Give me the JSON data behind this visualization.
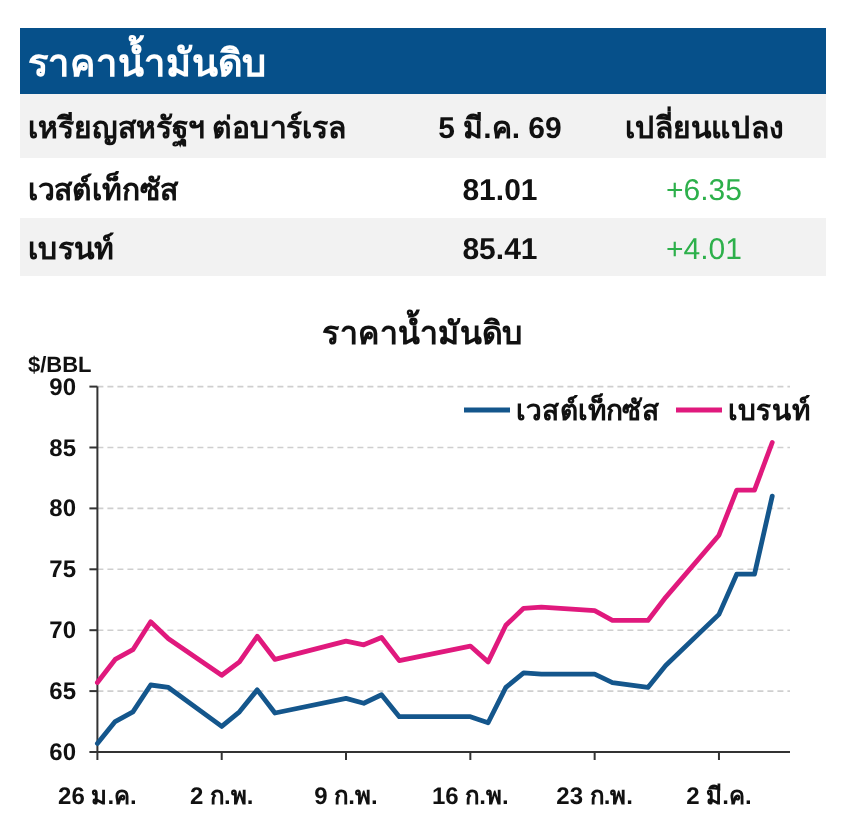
{
  "chart_data": [
    {
      "type": "other",
      "title": "ราคาน้ำมันดิบ",
      "annotations": [
        "เหรียญสหรัฐฯ ต่อบาร์เรล",
        "5 มี.ค. 69",
        "เปลี่ยนแปลง",
        "เวสต์เท็กซัส",
        "81.01",
        "+6.35",
        "เบรนท์",
        "85.41",
        "+4.01"
      ]
    },
    {
      "type": "line",
      "title": "ราคาน้ำมันดิบ",
      "ylabel": "$/BBL",
      "x": [
        "--01-26",
        "--01-27",
        "--01-28",
        "--01-29",
        "--01-30",
        "--02-02",
        "--02-03",
        "--02-04",
        "--02-05",
        "--02-09",
        "--02-10",
        "--02-11",
        "--02-12",
        "--02-16",
        "--02-17",
        "--02-18",
        "--02-19",
        "--02-20",
        "--02-23",
        "--02-24",
        "--02-26",
        "--02-27",
        "--03-02",
        "--03-03",
        "--03-04",
        "--03-05"
      ],
      "series": [
        {
          "name": "เวสต์เท็กซัส",
          "color": "#14568c",
          "values": [
            60.7,
            62.5,
            63.3,
            65.5,
            65.3,
            62.1,
            63.3,
            65.1,
            63.2,
            64.4,
            64.0,
            64.7,
            62.9,
            62.9,
            62.4,
            65.3,
            66.5,
            66.4,
            66.4,
            65.7,
            65.3,
            67.1,
            71.3,
            74.6,
            74.6,
            81.01
          ]
        },
        {
          "name": "เบรนท์",
          "color": "#e0197d",
          "values": [
            65.7,
            67.6,
            68.4,
            70.7,
            69.3,
            66.3,
            67.4,
            69.5,
            67.6,
            69.1,
            68.8,
            69.4,
            67.5,
            68.7,
            67.4,
            70.4,
            71.8,
            71.9,
            71.6,
            70.8,
            70.8,
            72.7,
            77.8,
            81.5,
            81.5,
            85.41
          ]
        }
      ],
      "xlim": [
        "--01-26",
        "--03-06"
      ],
      "xticks": [
        {
          "value": "--01-26",
          "label": "26 ม.ค."
        },
        {
          "value": "--02-02",
          "label": "2 ก.พ."
        },
        {
          "value": "--02-09",
          "label": "9 ก.พ."
        },
        {
          "value": "--02-16",
          "label": "16 ก.พ."
        },
        {
          "value": "--02-23",
          "label": "23 ก.พ."
        },
        {
          "value": "--03-02",
          "label": "2 มี.ค."
        }
      ],
      "ylim": [
        60,
        90
      ],
      "yticks": [
        60,
        65,
        70,
        75,
        80,
        85,
        90
      ],
      "grid": "y",
      "legend": "top right",
      "line_style": "solid",
      "marker": "none"
    }
  ]
}
